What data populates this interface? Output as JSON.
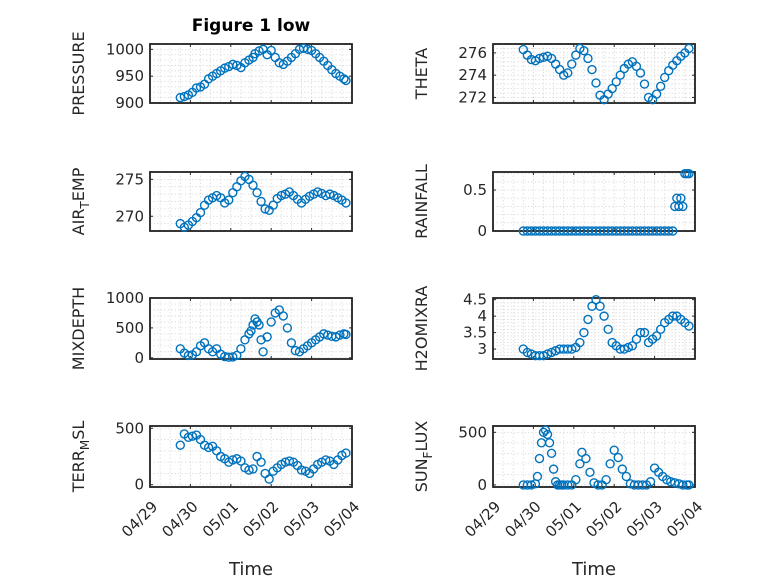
{
  "figure": {
    "title": "Figure 1 low",
    "marker_color": "#0072bd",
    "grid_color": "#d9d9d9",
    "axis_color": "#262626"
  },
  "chart_data": [
    {
      "id": "pressure",
      "type": "scatter",
      "ylabel": "PRESSURE",
      "ylabel_sub": "",
      "ylabel_suffix": "",
      "xlim": [
        0,
        5
      ],
      "ylim": [
        900,
        1010
      ],
      "yticks": [
        900,
        950,
        1000
      ],
      "ytick_labels": [
        "900",
        "950",
        "1000"
      ],
      "x": [
        0.75,
        0.85,
        0.95,
        1.05,
        1.15,
        1.25,
        1.35,
        1.45,
        1.55,
        1.65,
        1.75,
        1.85,
        1.95,
        2.05,
        2.15,
        2.25,
        2.35,
        2.45,
        2.55,
        2.6,
        2.7,
        2.8,
        2.9,
        3.0,
        3.1,
        3.2,
        3.3,
        3.4,
        3.5,
        3.6,
        3.7,
        3.8,
        3.9,
        4.0,
        4.1,
        4.2,
        4.3,
        4.4,
        4.5,
        4.6,
        4.7,
        4.8,
        4.85
      ],
      "y": [
        910,
        912,
        915,
        920,
        928,
        930,
        935,
        945,
        950,
        955,
        960,
        965,
        968,
        972,
        970,
        966,
        975,
        980,
        985,
        992,
        997,
        1000,
        990,
        998,
        985,
        975,
        972,
        978,
        985,
        992,
        1000,
        1002,
        1000,
        998,
        992,
        985,
        978,
        970,
        962,
        955,
        950,
        945,
        942
      ]
    },
    {
      "id": "theta",
      "type": "scatter",
      "ylabel": "THETA",
      "ylabel_sub": "",
      "ylabel_suffix": "",
      "xlim": [
        0,
        5
      ],
      "ylim": [
        271.5,
        276.8
      ],
      "yticks": [
        272,
        274,
        276
      ],
      "ytick_labels": [
        "272",
        "274",
        "276"
      ],
      "x": [
        0.75,
        0.85,
        0.95,
        1.05,
        1.15,
        1.25,
        1.35,
        1.45,
        1.55,
        1.65,
        1.75,
        1.85,
        1.95,
        2.05,
        2.15,
        2.25,
        2.35,
        2.45,
        2.55,
        2.65,
        2.75,
        2.85,
        2.95,
        3.05,
        3.15,
        3.25,
        3.35,
        3.45,
        3.55,
        3.65,
        3.75,
        3.85,
        3.95,
        4.05,
        4.15,
        4.25,
        4.35,
        4.45,
        4.55,
        4.65,
        4.75,
        4.85
      ],
      "y": [
        276.3,
        275.8,
        275.4,
        275.3,
        275.5,
        275.6,
        275.7,
        275.5,
        275.0,
        274.5,
        274.0,
        274.2,
        275.0,
        275.8,
        276.4,
        276.2,
        275.5,
        274.5,
        273.3,
        272.2,
        271.8,
        272.3,
        272.8,
        273.4,
        274.0,
        274.6,
        275.0,
        275.2,
        274.8,
        274.2,
        273.2,
        272.0,
        271.8,
        272.3,
        273.0,
        273.8,
        274.4,
        274.9,
        275.3,
        275.7,
        276.0,
        276.4
      ]
    },
    {
      "id": "air-temp",
      "type": "scatter",
      "ylabel": "AIR",
      "ylabel_sub": "T",
      "ylabel_suffix": "EMP",
      "xlim": [
        0,
        5
      ],
      "ylim": [
        268,
        276
      ],
      "yticks": [
        270,
        275
      ],
      "ytick_labels": [
        "270",
        "275"
      ],
      "x": [
        0.75,
        0.85,
        0.95,
        1.05,
        1.15,
        1.25,
        1.35,
        1.45,
        1.55,
        1.65,
        1.75,
        1.85,
        1.95,
        2.05,
        2.15,
        2.25,
        2.35,
        2.45,
        2.55,
        2.65,
        2.75,
        2.85,
        2.95,
        3.05,
        3.15,
        3.25,
        3.35,
        3.45,
        3.55,
        3.65,
        3.75,
        3.85,
        3.95,
        4.05,
        4.15,
        4.25,
        4.35,
        4.45,
        4.55,
        4.65,
        4.75,
        4.85
      ],
      "y": [
        269.0,
        268.5,
        268.8,
        269.3,
        269.8,
        270.5,
        271.5,
        272.2,
        272.5,
        272.8,
        272.5,
        271.8,
        272.2,
        273.2,
        274.0,
        274.8,
        275.4,
        275.0,
        274.2,
        273.2,
        272.0,
        271.0,
        270.8,
        271.5,
        272.4,
        272.8,
        273.0,
        273.3,
        272.8,
        272.3,
        271.8,
        272.3,
        272.7,
        273.0,
        273.3,
        273.1,
        272.8,
        273.0,
        272.8,
        272.5,
        272.2,
        271.8
      ]
    },
    {
      "id": "rainfall",
      "type": "scatter",
      "ylabel": "RAINFALL",
      "ylabel_sub": "",
      "ylabel_suffix": "",
      "xlim": [
        0,
        5
      ],
      "ylim": [
        0,
        0.72
      ],
      "yticks": [
        0,
        0.5
      ],
      "ytick_labels": [
        "0",
        "0.5"
      ],
      "x": [
        0.75,
        0.85,
        0.95,
        1.05,
        1.15,
        1.25,
        1.35,
        1.45,
        1.55,
        1.65,
        1.75,
        1.85,
        1.95,
        2.05,
        2.15,
        2.25,
        2.35,
        2.45,
        2.55,
        2.65,
        2.75,
        2.85,
        2.95,
        3.05,
        3.15,
        3.25,
        3.35,
        3.45,
        3.55,
        3.65,
        3.75,
        3.85,
        3.95,
        4.05,
        4.15,
        4.25,
        4.35,
        4.45,
        4.5,
        4.55,
        4.6,
        4.65,
        4.7,
        4.75,
        4.8,
        4.85
      ],
      "y": [
        0,
        0,
        0,
        0,
        0,
        0,
        0,
        0,
        0,
        0,
        0,
        0,
        0,
        0,
        0,
        0,
        0,
        0,
        0,
        0,
        0,
        0,
        0,
        0,
        0,
        0,
        0,
        0,
        0,
        0,
        0,
        0,
        0,
        0,
        0,
        0,
        0,
        0,
        0.3,
        0.4,
        0.3,
        0.4,
        0.3,
        0.7,
        0.7,
        0.7
      ]
    },
    {
      "id": "mixdepth",
      "type": "scatter",
      "ylabel": "MIXDEPTH",
      "ylabel_sub": "",
      "ylabel_suffix": "",
      "xlim": [
        0,
        5
      ],
      "ylim": [
        -20,
        1000
      ],
      "yticks": [
        0,
        500,
        1000
      ],
      "ytick_labels": [
        "0",
        "500",
        "1000"
      ],
      "x": [
        0.75,
        0.85,
        0.95,
        1.05,
        1.15,
        1.25,
        1.35,
        1.45,
        1.55,
        1.65,
        1.75,
        1.85,
        1.95,
        2.05,
        2.15,
        2.25,
        2.35,
        2.45,
        2.5,
        2.55,
        2.6,
        2.65,
        2.7,
        2.75,
        2.8,
        2.9,
        3.0,
        3.1,
        3.2,
        3.3,
        3.4,
        3.5,
        3.6,
        3.7,
        3.8,
        3.9,
        4.0,
        4.1,
        4.2,
        4.3,
        4.4,
        4.5,
        4.6,
        4.7,
        4.8,
        4.85
      ],
      "y": [
        150,
        80,
        40,
        50,
        100,
        200,
        250,
        150,
        100,
        150,
        60,
        20,
        10,
        15,
        40,
        150,
        300,
        400,
        450,
        550,
        650,
        600,
        550,
        300,
        100,
        350,
        600,
        750,
        800,
        700,
        500,
        250,
        120,
        100,
        150,
        200,
        250,
        300,
        350,
        400,
        380,
        360,
        350,
        380,
        400,
        390
      ]
    },
    {
      "id": "h2omixra",
      "type": "scatter",
      "ylabel": "H2OMIXRA",
      "ylabel_sub": "",
      "ylabel_suffix": "",
      "xlim": [
        0,
        5
      ],
      "ylim": [
        2.7,
        4.55
      ],
      "yticks": [
        3,
        3.5,
        4,
        4.5
      ],
      "ytick_labels": [
        "3",
        "3.5",
        "4",
        "4.5"
      ],
      "x": [
        0.75,
        0.85,
        0.95,
        1.05,
        1.15,
        1.25,
        1.35,
        1.45,
        1.55,
        1.65,
        1.75,
        1.85,
        1.95,
        2.05,
        2.15,
        2.25,
        2.35,
        2.45,
        2.55,
        2.65,
        2.75,
        2.85,
        2.95,
        3.05,
        3.15,
        3.25,
        3.35,
        3.45,
        3.55,
        3.65,
        3.75,
        3.85,
        3.95,
        4.05,
        4.15,
        4.25,
        4.35,
        4.45,
        4.55,
        4.65,
        4.75,
        4.85
      ],
      "y": [
        3.0,
        2.9,
        2.85,
        2.8,
        2.8,
        2.8,
        2.85,
        2.9,
        2.95,
        3.0,
        3.0,
        3.0,
        3.0,
        3.05,
        3.2,
        3.5,
        3.9,
        4.3,
        4.5,
        4.3,
        4.0,
        3.6,
        3.2,
        3.1,
        3.0,
        3.0,
        3.05,
        3.1,
        3.3,
        3.5,
        3.5,
        3.2,
        3.3,
        3.4,
        3.6,
        3.8,
        3.9,
        4.0,
        4.0,
        3.9,
        3.8,
        3.7
      ]
    },
    {
      "id": "terr-msl",
      "type": "scatter",
      "ylabel": "TERR",
      "ylabel_sub": "M",
      "ylabel_suffix": "SL",
      "xlim": [
        0,
        5
      ],
      "ylim": [
        -20,
        520
      ],
      "yticks": [
        0,
        500
      ],
      "ytick_labels": [
        "0",
        "500"
      ],
      "x": [
        0.75,
        0.85,
        0.95,
        1.05,
        1.15,
        1.25,
        1.35,
        1.45,
        1.55,
        1.65,
        1.75,
        1.85,
        1.95,
        2.05,
        2.15,
        2.25,
        2.35,
        2.45,
        2.55,
        2.65,
        2.75,
        2.85,
        2.95,
        3.05,
        3.15,
        3.25,
        3.35,
        3.45,
        3.55,
        3.65,
        3.75,
        3.85,
        3.95,
        4.05,
        4.15,
        4.25,
        4.35,
        4.45,
        4.55,
        4.65,
        4.75,
        4.85
      ],
      "y": [
        350,
        450,
        420,
        430,
        440,
        400,
        350,
        330,
        340,
        300,
        250,
        230,
        200,
        220,
        230,
        210,
        150,
        130,
        140,
        250,
        200,
        100,
        50,
        120,
        150,
        180,
        200,
        210,
        200,
        170,
        130,
        120,
        100,
        140,
        180,
        200,
        220,
        210,
        180,
        220,
        260,
        280
      ]
    },
    {
      "id": "sun-flux",
      "type": "scatter",
      "ylabel": "SUN",
      "ylabel_sub": "F",
      "ylabel_suffix": "LUX",
      "xlim": [
        0,
        5
      ],
      "ylim": [
        -20,
        560
      ],
      "yticks": [
        0,
        500
      ],
      "ytick_labels": [
        "0",
        "500"
      ],
      "x": [
        0.75,
        0.85,
        0.95,
        1.05,
        1.1,
        1.15,
        1.2,
        1.25,
        1.3,
        1.35,
        1.4,
        1.45,
        1.5,
        1.55,
        1.6,
        1.65,
        1.7,
        1.75,
        1.85,
        1.95,
        2.05,
        2.15,
        2.2,
        2.3,
        2.4,
        2.5,
        2.6,
        2.7,
        2.8,
        2.9,
        3.0,
        3.1,
        3.2,
        3.3,
        3.4,
        3.5,
        3.6,
        3.7,
        3.8,
        3.9,
        4.0,
        4.1,
        4.2,
        4.3,
        4.4,
        4.5,
        4.6,
        4.7,
        4.8,
        4.85
      ],
      "y": [
        0,
        0,
        0,
        10,
        80,
        250,
        400,
        500,
        520,
        480,
        400,
        300,
        150,
        30,
        0,
        0,
        0,
        0,
        0,
        0,
        50,
        200,
        310,
        250,
        120,
        20,
        0,
        0,
        50,
        200,
        330,
        260,
        150,
        80,
        10,
        0,
        0,
        0,
        0,
        30,
        160,
        120,
        80,
        50,
        30,
        20,
        10,
        0,
        0,
        0
      ]
    }
  ],
  "x_axis": {
    "label": "Time",
    "ticks": [
      0,
      1,
      2,
      3,
      4,
      5
    ],
    "tick_labels": [
      "04/29",
      "04/30",
      "05/01",
      "05/02",
      "05/03",
      "05/04"
    ]
  }
}
